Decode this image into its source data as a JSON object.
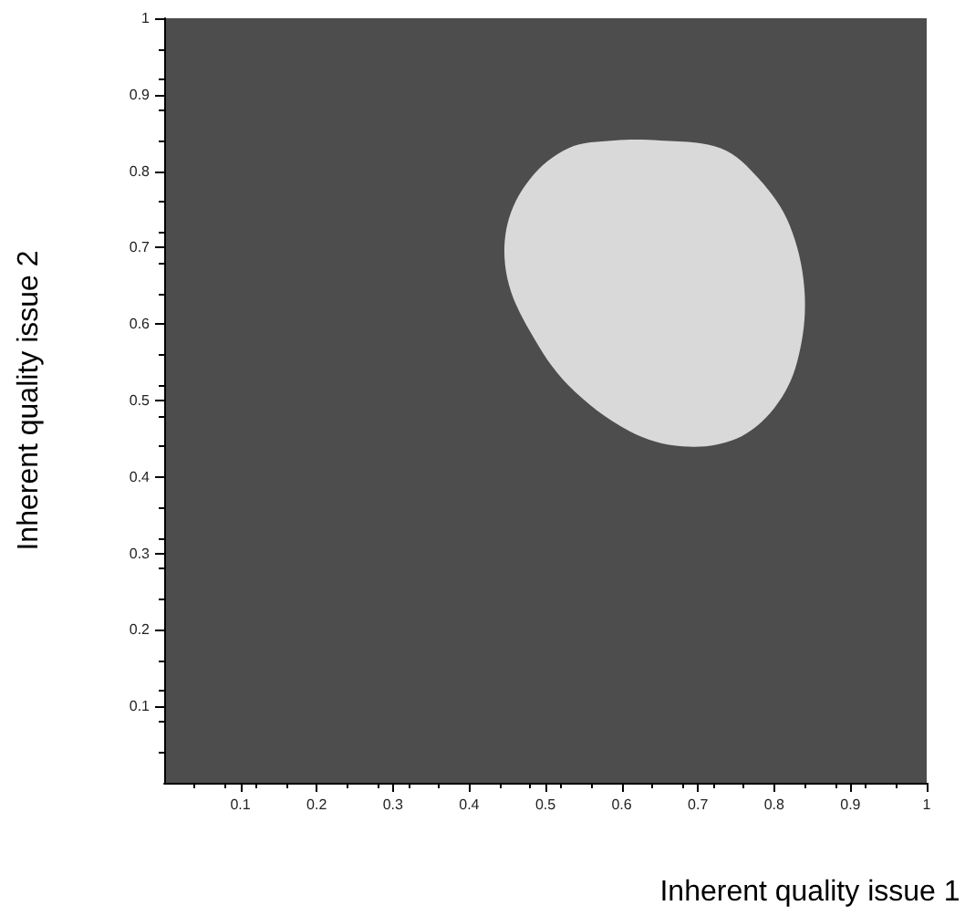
{
  "chart_data": {
    "type": "area",
    "xlabel": "Inherent quality issue 1",
    "ylabel": "Inherent quality issue 2",
    "xlim": [
      0,
      1
    ],
    "ylim": [
      0,
      1
    ],
    "xticks": [
      0.1,
      0.2,
      0.3,
      0.4,
      0.5,
      0.6,
      0.7,
      0.8,
      0.9,
      1
    ],
    "yticks": [
      0.1,
      0.2,
      0.3,
      0.4,
      0.5,
      0.6,
      0.7,
      0.8,
      0.9,
      1
    ],
    "grid": false,
    "series": [
      {
        "color": "#d9d9d9",
        "x": [
          0.65,
          0.73,
          0.78,
          0.82,
          0.84,
          0.83,
          0.8,
          0.75,
          0.68,
          0.61,
          0.53,
          0.48,
          0.45,
          0.45,
          0.48,
          0.53,
          0.59
        ],
        "values": [
          0.84,
          0.83,
          0.79,
          0.73,
          0.64,
          0.55,
          0.49,
          0.45,
          0.44,
          0.46,
          0.52,
          0.59,
          0.66,
          0.73,
          0.79,
          0.83,
          0.84
        ]
      }
    ]
  }
}
